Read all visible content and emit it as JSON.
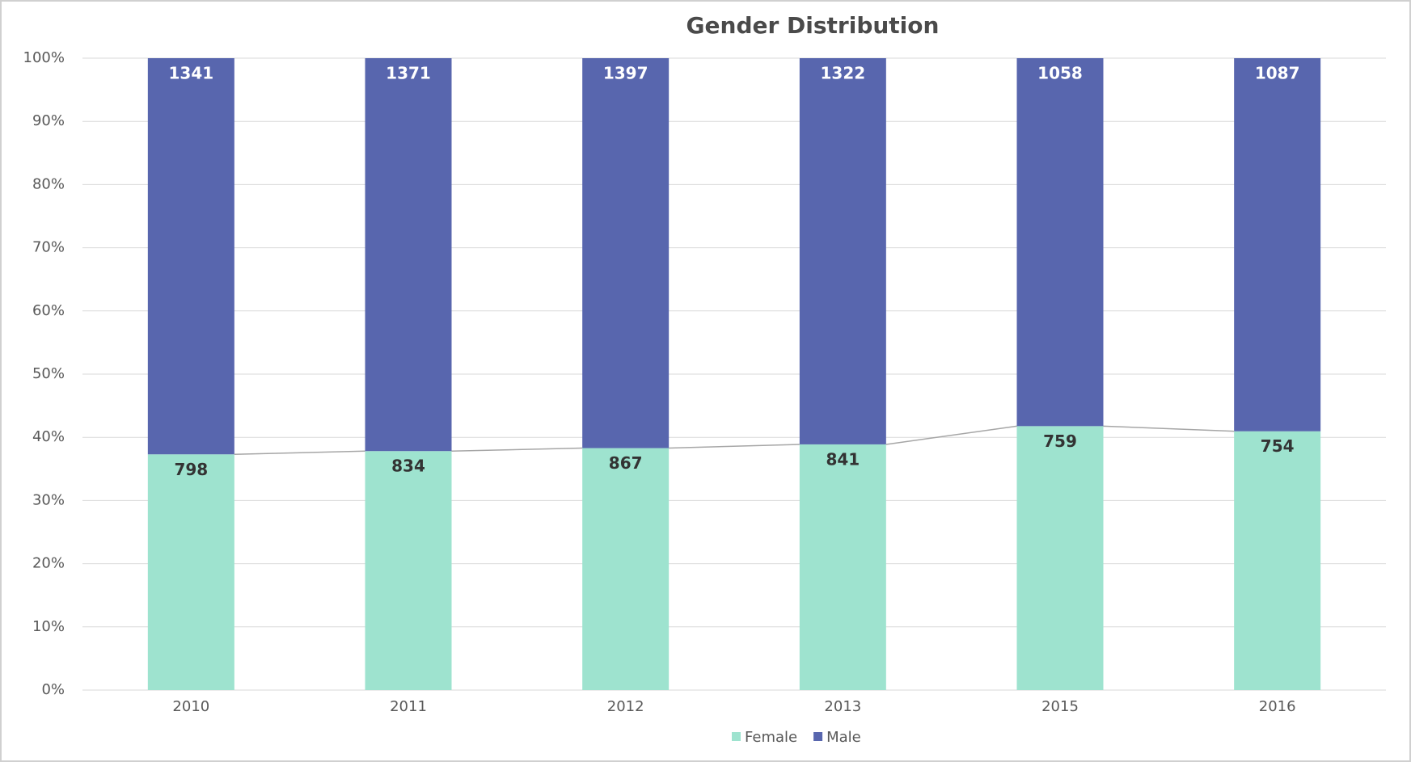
{
  "chart_data": {
    "type": "bar",
    "stack": "percent",
    "series_lines": true,
    "title": "Gender Distribution",
    "categories": [
      "2010",
      "2011",
      "2012",
      "2013",
      "2015",
      "2016"
    ],
    "series": [
      {
        "name": "Female",
        "color": "#9ee3cf",
        "values": [
          798,
          834,
          867,
          841,
          759,
          754
        ]
      },
      {
        "name": "Male",
        "color": "#5866ae",
        "values": [
          1341,
          1371,
          1397,
          1322,
          1058,
          1087
        ]
      }
    ],
    "ylim": [
      0,
      100
    ],
    "yticks": [
      {
        "value": 0,
        "label": "0%"
      },
      {
        "value": 10,
        "label": "10%"
      },
      {
        "value": 20,
        "label": "20%"
      },
      {
        "value": 30,
        "label": "30%"
      },
      {
        "value": 40,
        "label": "40%"
      },
      {
        "value": 50,
        "label": "50%"
      },
      {
        "value": 60,
        "label": "60%"
      },
      {
        "value": 70,
        "label": "70%"
      },
      {
        "value": 80,
        "label": "80%"
      },
      {
        "value": 90,
        "label": "90%"
      },
      {
        "value": 100,
        "label": "100%"
      }
    ],
    "grid": true,
    "legend": "bottom"
  }
}
